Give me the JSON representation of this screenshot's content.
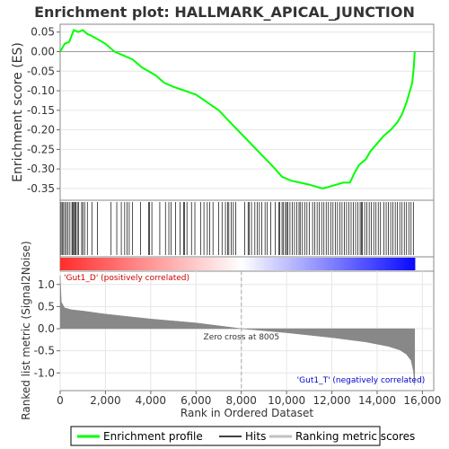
{
  "chart_data": {
    "type": "line",
    "title": "Enrichment plot: HALLMARK_APICAL_JUNCTION",
    "top_panel": {
      "ylabel": "Enrichment score (ES)",
      "ylim": [
        -0.38,
        0.07
      ],
      "yticks": [
        0.05,
        0.0,
        -0.05,
        -0.1,
        -0.15,
        -0.2,
        -0.25,
        -0.3,
        -0.35
      ],
      "ytick_labels": [
        "0.05",
        "0.00",
        "-0.05",
        "-0.10",
        "-0.15",
        "-0.20",
        "-0.25",
        "-0.30",
        "-0.35"
      ],
      "series": [
        {
          "name": "Enrichment profile",
          "color": "#00ff00",
          "x": [
            0,
            200,
            400,
            600,
            800,
            1000,
            1200,
            1400,
            1700,
            2000,
            2400,
            2800,
            3200,
            3600,
            3900,
            4200,
            4600,
            5000,
            5500,
            6000,
            6500,
            7000,
            7500,
            8000,
            8500,
            9000,
            9500,
            9800,
            10200,
            10600,
            11000,
            11300,
            11600,
            11900,
            12200,
            12500,
            12800,
            13000,
            13200,
            13500,
            13700,
            14000,
            14300,
            14600,
            14900,
            15100,
            15300,
            15450,
            15550,
            15620,
            15660
          ],
          "y": [
            0.0,
            0.02,
            0.025,
            0.055,
            0.05,
            0.055,
            0.045,
            0.04,
            0.03,
            0.02,
            0.0,
            -0.01,
            -0.02,
            -0.04,
            -0.05,
            -0.06,
            -0.08,
            -0.09,
            -0.1,
            -0.11,
            -0.13,
            -0.15,
            -0.18,
            -0.21,
            -0.24,
            -0.27,
            -0.3,
            -0.32,
            -0.33,
            -0.335,
            -0.34,
            -0.345,
            -0.35,
            -0.345,
            -0.34,
            -0.335,
            -0.335,
            -0.31,
            -0.29,
            -0.275,
            -0.255,
            -0.235,
            -0.215,
            -0.2,
            -0.18,
            -0.16,
            -0.13,
            -0.1,
            -0.08,
            -0.04,
            0.0
          ]
        }
      ],
      "hits": [
        40,
        90,
        150,
        210,
        280,
        350,
        430,
        520,
        560,
        600,
        650,
        700,
        760,
        820,
        950,
        1000,
        1080,
        1200,
        1400,
        1650,
        2250,
        2500,
        2700,
        2850,
        2950,
        3050,
        3200,
        3550,
        3900,
        3950,
        4050,
        4400,
        4650,
        4800,
        4900,
        5100,
        5300,
        5450,
        5500,
        5600,
        5800,
        5950,
        6200,
        6350,
        6500,
        6600,
        6750,
        7000,
        7150,
        7300,
        7400,
        7450,
        7550,
        7650,
        7750,
        8150,
        8300,
        8350,
        8450,
        8600,
        8700,
        8800,
        8900,
        9050,
        9150,
        9300,
        9500,
        9650,
        9700,
        9800,
        9850,
        9950,
        10000,
        10050,
        10150,
        10250,
        10350,
        10450,
        10550,
        10600,
        10700,
        10800,
        10900,
        11000,
        11150,
        11250,
        11350,
        11450,
        11550,
        11650,
        11750,
        11850,
        11950,
        12050,
        12150,
        12250,
        12350,
        12450,
        12550,
        12650,
        12750,
        12850,
        12950,
        13050,
        13150,
        13250,
        13300,
        13350,
        13450,
        13550,
        13650,
        13750,
        13850,
        13950,
        14050,
        14150,
        14300,
        14400,
        14500,
        14600,
        14700,
        14800,
        14900,
        15000,
        15100,
        15200,
        15300,
        15400,
        15500,
        15600
      ]
    },
    "bottom_panel": {
      "ylabel": "Ranked list metric (Signal2Noise)",
      "xlabel": "Rank in Ordered Dataset",
      "xlim": [
        0,
        16500
      ],
      "ylim": [
        -1.4,
        1.3
      ],
      "xticks": [
        0,
        2000,
        4000,
        6000,
        8000,
        10000,
        12000,
        14000,
        16000
      ],
      "xtick_labels": [
        "0",
        "2,000",
        "4,000",
        "6,000",
        "8,000",
        "10,000",
        "12,000",
        "14,000",
        "16,000"
      ],
      "yticks": [
        1.0,
        0.5,
        0.0,
        -0.5,
        -1.0
      ],
      "ytick_labels": [
        "1.0",
        "0.5",
        "0.0",
        "-0.5",
        "-1.0"
      ],
      "metric_x": [
        0,
        50,
        200,
        500,
        1000,
        2000,
        4000,
        6000,
        8005,
        10000,
        12000,
        13500,
        14500,
        15000,
        15300,
        15500,
        15600,
        15660
      ],
      "metric_y": [
        1.2,
        0.6,
        0.47,
        0.43,
        0.4,
        0.33,
        0.22,
        0.13,
        0.0,
        -0.09,
        -0.2,
        -0.3,
        -0.4,
        -0.48,
        -0.58,
        -0.72,
        -0.95,
        -1.28
      ],
      "zero_cross_x": 8005,
      "zero_cross_label": "Zero cross at 8005",
      "pos_label": "'Gut1_D' (positively correlated)",
      "neg_label": "'Gut1_T' (negatively correlated)",
      "pos_color": "#cc0000",
      "neg_color": "#0000cc"
    },
    "n_ranks": 15660,
    "legend": {
      "placement": "bottom",
      "entries": [
        {
          "label": "Enrichment profile",
          "color": "#00ff00"
        },
        {
          "label": "Hits",
          "color": "#000000"
        },
        {
          "label": "Ranking metric scores",
          "color": "#c0c0c0"
        }
      ]
    }
  }
}
